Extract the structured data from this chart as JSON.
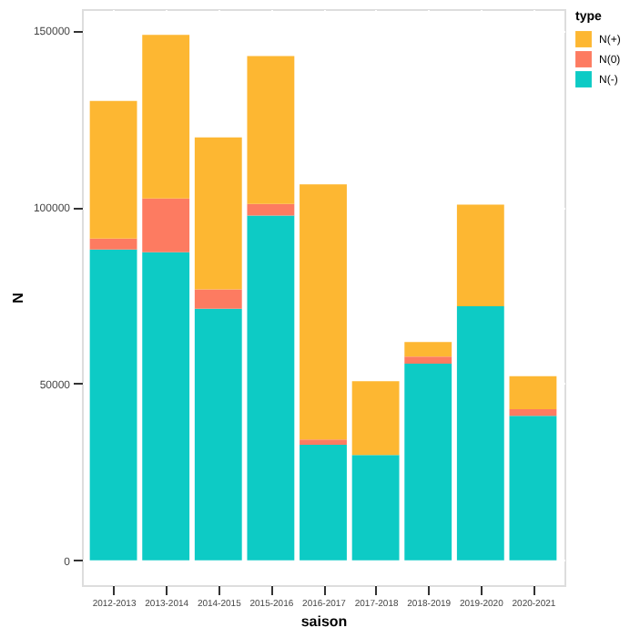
{
  "chart_data": {
    "type": "bar",
    "stacked": true,
    "xlabel": "saison",
    "ylabel": "N",
    "legend_title": "type",
    "legend": "right",
    "grid": true,
    "categories": [
      "2012-2013",
      "2013-2014",
      "2014-2015",
      "2015-2016",
      "2016-2017",
      "2017-2018",
      "2018-2019",
      "2019-2020",
      "2020-2021"
    ],
    "ylim": [
      -7000,
      156000
    ],
    "yticks": [
      0,
      50000,
      100000,
      150000
    ],
    "series": [
      {
        "name": "N(-)",
        "color": "#00c8c2",
        "values": [
          88000,
          87200,
          71200,
          97600,
          32700,
          29800,
          55700,
          71900,
          40900
        ]
      },
      {
        "name": "N(0)",
        "color": "#fd7459",
        "values": [
          3100,
          15200,
          5500,
          3300,
          1500,
          0,
          2000,
          0,
          1900
        ]
      },
      {
        "name": "N(+)",
        "color": "#fdb327",
        "values": [
          38900,
          46300,
          43000,
          41800,
          72200,
          20900,
          4100,
          28800,
          9300
        ]
      }
    ]
  }
}
